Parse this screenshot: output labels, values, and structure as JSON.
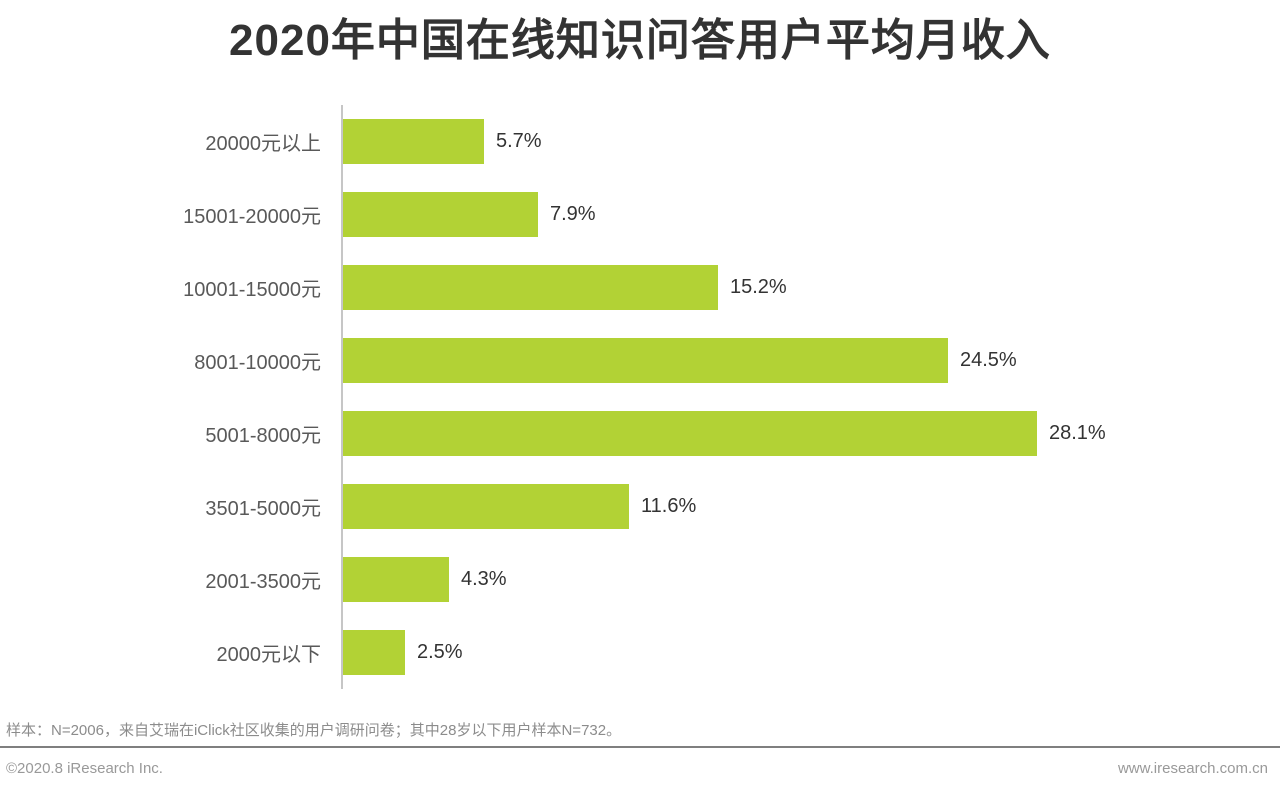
{
  "chart_data": {
    "type": "bar",
    "orientation": "horizontal",
    "title": "2020年中国在线知识问答用户平均月收入",
    "categories": [
      "20000元以上",
      "15001-20000元",
      "10001-15000元",
      "8001-10000元",
      "5001-8000元",
      "3501-5000元",
      "2001-3500元",
      "2000元以下"
    ],
    "values": [
      5.7,
      7.9,
      15.2,
      24.5,
      28.1,
      11.6,
      4.3,
      2.5
    ],
    "value_labels": [
      "5.7%",
      "7.9%",
      "15.2%",
      "24.5%",
      "28.1%",
      "11.6%",
      "4.3%",
      "2.5%"
    ],
    "unit": "%",
    "xlim": [
      0,
      30
    ],
    "grid": false,
    "legend": "none",
    "bar_color": "#b2d235",
    "axis_color": "#c6c6c6",
    "label_color": "#595959",
    "value_color": "#333333"
  },
  "footnote": "样本：N=2006，来自艾瑞在iClick社区收集的用户调研问卷；其中28岁以下用户样本N=732。",
  "footer": {
    "left": "©2020.8 iResearch Inc.",
    "right": "www.iresearch.com.cn"
  }
}
